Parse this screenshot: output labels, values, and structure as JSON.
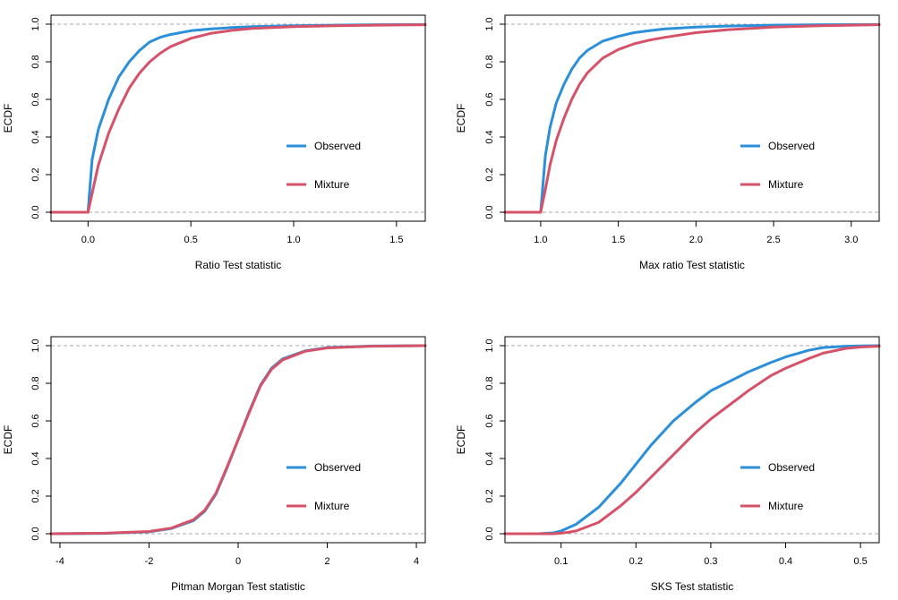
{
  "figure": {
    "description": "2x2 grid of ECDF plots comparing observed and mixture distributions"
  },
  "colors": {
    "observed": "#2b8fd9",
    "mixture": "#d65268",
    "reference": "#aaaaaa",
    "frame": "#000000"
  },
  "chart_data": [
    {
      "type": "line",
      "title": "",
      "xlabel": "Ratio Test statistic",
      "ylabel": "ECDF",
      "xlim": [
        -0.18,
        1.64
      ],
      "ylim": [
        0,
        1
      ],
      "xticks": [
        0.0,
        0.5,
        1.0,
        1.5
      ],
      "xtick_labels": [
        "0.0",
        "0.5",
        "1.0",
        "1.5"
      ],
      "yticks": [
        0,
        0.2,
        0.4,
        0.6,
        0.8,
        1.0
      ],
      "ytick_labels": [
        "0.0",
        "0.2",
        "0.4",
        "0.6",
        "0.8",
        "1.0"
      ],
      "reference_lines": [
        0,
        1
      ],
      "legend": {
        "position": "right",
        "entries": [
          "Observed",
          "Mixture"
        ]
      },
      "series": [
        {
          "name": "Observed",
          "x": [
            -0.18,
            0.0,
            0.02,
            0.05,
            0.1,
            0.15,
            0.2,
            0.25,
            0.3,
            0.35,
            0.4,
            0.5,
            0.6,
            0.7,
            0.8,
            1.0,
            1.2,
            1.4,
            1.64
          ],
          "y": [
            0,
            0,
            0.28,
            0.44,
            0.6,
            0.72,
            0.8,
            0.86,
            0.905,
            0.93,
            0.945,
            0.965,
            0.975,
            0.982,
            0.987,
            0.992,
            0.995,
            0.997,
            0.998
          ]
        },
        {
          "name": "Mixture",
          "x": [
            -0.18,
            0.0,
            0.02,
            0.05,
            0.1,
            0.15,
            0.2,
            0.25,
            0.3,
            0.35,
            0.4,
            0.5,
            0.6,
            0.7,
            0.8,
            1.0,
            1.2,
            1.4,
            1.64
          ],
          "y": [
            0,
            0,
            0.1,
            0.25,
            0.42,
            0.55,
            0.66,
            0.74,
            0.8,
            0.845,
            0.88,
            0.925,
            0.952,
            0.967,
            0.977,
            0.987,
            0.992,
            0.995,
            0.997
          ]
        }
      ]
    },
    {
      "type": "line",
      "title": "",
      "xlabel": "Max ratio Test statistic",
      "ylabel": "ECDF",
      "xlim": [
        0.77,
        3.18
      ],
      "ylim": [
        0,
        1
      ],
      "xticks": [
        1.0,
        1.5,
        2.0,
        2.5,
        3.0
      ],
      "xtick_labels": [
        "1.0",
        "1.5",
        "2.0",
        "2.5",
        "3.0"
      ],
      "yticks": [
        0,
        0.2,
        0.4,
        0.6,
        0.8,
        1.0
      ],
      "ytick_labels": [
        "0.0",
        "0.2",
        "0.4",
        "0.6",
        "0.8",
        "1.0"
      ],
      "reference_lines": [
        0,
        1
      ],
      "legend": {
        "position": "right",
        "entries": [
          "Observed",
          "Mixture"
        ]
      },
      "series": [
        {
          "name": "Observed",
          "x": [
            0.77,
            1.0,
            1.03,
            1.06,
            1.1,
            1.15,
            1.2,
            1.25,
            1.3,
            1.4,
            1.5,
            1.6,
            1.7,
            1.8,
            2.0,
            2.2,
            2.5,
            2.8,
            3.18
          ],
          "y": [
            0,
            0,
            0.3,
            0.45,
            0.58,
            0.68,
            0.76,
            0.82,
            0.86,
            0.91,
            0.935,
            0.955,
            0.965,
            0.975,
            0.985,
            0.99,
            0.995,
            0.997,
            0.998
          ]
        },
        {
          "name": "Mixture",
          "x": [
            0.77,
            1.0,
            1.03,
            1.06,
            1.1,
            1.15,
            1.2,
            1.25,
            1.3,
            1.4,
            1.5,
            1.6,
            1.7,
            1.8,
            2.0,
            2.2,
            2.5,
            2.8,
            3.18
          ],
          "y": [
            0,
            0,
            0.12,
            0.25,
            0.38,
            0.5,
            0.6,
            0.68,
            0.74,
            0.82,
            0.865,
            0.895,
            0.915,
            0.93,
            0.955,
            0.97,
            0.985,
            0.992,
            0.997
          ]
        }
      ]
    },
    {
      "type": "line",
      "title": "",
      "xlabel": "Pitman Morgan Test statistic",
      "ylabel": "ECDF",
      "xlim": [
        -4.2,
        4.2
      ],
      "ylim": [
        0,
        1
      ],
      "xticks": [
        -4,
        -2,
        0,
        2,
        4
      ],
      "xtick_labels": [
        "-4",
        "-2",
        "0",
        "2",
        "4"
      ],
      "yticks": [
        0,
        0.2,
        0.4,
        0.6,
        0.8,
        1.0
      ],
      "ytick_labels": [
        "0.0",
        "0.2",
        "0.4",
        "0.6",
        "0.8",
        "1.0"
      ],
      "reference_lines": [
        0,
        1
      ],
      "legend": {
        "position": "right",
        "entries": [
          "Observed",
          "Mixture"
        ]
      },
      "series": [
        {
          "name": "Observed",
          "x": [
            -4.2,
            -3.0,
            -2.0,
            -1.5,
            -1.0,
            -0.75,
            -0.5,
            -0.25,
            0.0,
            0.25,
            0.5,
            0.75,
            1.0,
            1.5,
            2.0,
            3.0,
            4.2
          ],
          "y": [
            0.0,
            0.002,
            0.01,
            0.028,
            0.07,
            0.12,
            0.21,
            0.35,
            0.5,
            0.65,
            0.79,
            0.88,
            0.93,
            0.972,
            0.99,
            0.998,
            1.0
          ]
        },
        {
          "name": "Mixture",
          "x": [
            -4.2,
            -3.0,
            -2.0,
            -1.5,
            -1.0,
            -0.75,
            -0.5,
            -0.25,
            0.0,
            0.25,
            0.5,
            0.75,
            1.0,
            1.5,
            2.0,
            3.0,
            4.2
          ],
          "y": [
            0.0,
            0.003,
            0.012,
            0.03,
            0.075,
            0.125,
            0.215,
            0.355,
            0.5,
            0.645,
            0.785,
            0.875,
            0.925,
            0.97,
            0.988,
            0.997,
            1.0
          ]
        }
      ]
    },
    {
      "type": "line",
      "title": "",
      "xlabel": "SKS Test statistic",
      "ylabel": "ECDF",
      "xlim": [
        0.025,
        0.525
      ],
      "ylim": [
        0,
        1
      ],
      "xticks": [
        0.1,
        0.2,
        0.3,
        0.4,
        0.5
      ],
      "xtick_labels": [
        "0.1",
        "0.2",
        "0.3",
        "0.4",
        "0.5"
      ],
      "yticks": [
        0,
        0.2,
        0.4,
        0.6,
        0.8,
        1.0
      ],
      "ytick_labels": [
        "0.0",
        "0.2",
        "0.4",
        "0.6",
        "0.8",
        "1.0"
      ],
      "reference_lines": [
        0,
        1
      ],
      "legend": {
        "position": "right",
        "entries": [
          "Observed",
          "Mixture"
        ]
      },
      "series": [
        {
          "name": "Observed",
          "x": [
            0.025,
            0.07,
            0.09,
            0.1,
            0.12,
            0.15,
            0.18,
            0.2,
            0.22,
            0.25,
            0.28,
            0.3,
            0.33,
            0.35,
            0.38,
            0.4,
            0.43,
            0.45,
            0.48,
            0.5,
            0.525
          ],
          "y": [
            0,
            0,
            0.005,
            0.015,
            0.05,
            0.14,
            0.27,
            0.37,
            0.47,
            0.6,
            0.7,
            0.76,
            0.82,
            0.86,
            0.91,
            0.94,
            0.975,
            0.99,
            0.997,
            0.999,
            1.0
          ]
        },
        {
          "name": "Mixture",
          "x": [
            0.025,
            0.09,
            0.1,
            0.11,
            0.12,
            0.15,
            0.18,
            0.2,
            0.22,
            0.25,
            0.28,
            0.3,
            0.33,
            0.35,
            0.38,
            0.4,
            0.43,
            0.45,
            0.48,
            0.5,
            0.525
          ],
          "y": [
            0,
            0,
            0.003,
            0.008,
            0.015,
            0.06,
            0.15,
            0.22,
            0.3,
            0.42,
            0.54,
            0.61,
            0.7,
            0.76,
            0.84,
            0.88,
            0.93,
            0.96,
            0.985,
            0.993,
            0.997
          ]
        }
      ]
    }
  ]
}
